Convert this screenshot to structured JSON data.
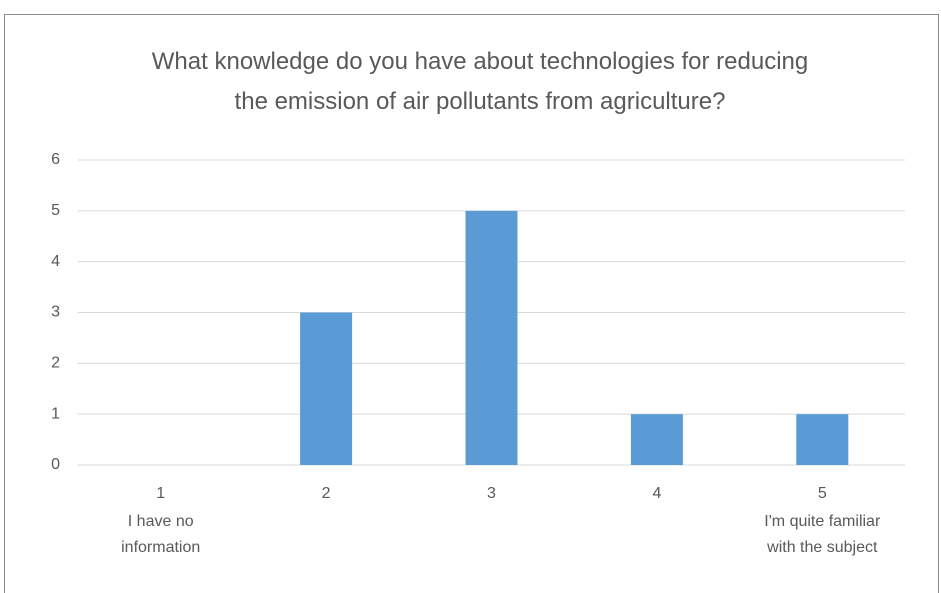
{
  "chart_data": {
    "type": "bar",
    "title": "What knowledge do you have about technologies for reducing the emission of air pollutants from agriculture?",
    "categories": [
      "1",
      "2",
      "3",
      "4",
      "5"
    ],
    "category_descriptions": [
      [
        "I have no",
        "information"
      ],
      null,
      null,
      null,
      [
        "I'm quite familiar",
        "with the subject"
      ]
    ],
    "values": [
      0,
      3,
      5,
      1,
      1
    ],
    "color": "#5b9bd5",
    "ylim": [
      0,
      6
    ],
    "yticks": [
      0,
      1,
      2,
      3,
      4,
      5,
      6
    ],
    "grid": true
  }
}
